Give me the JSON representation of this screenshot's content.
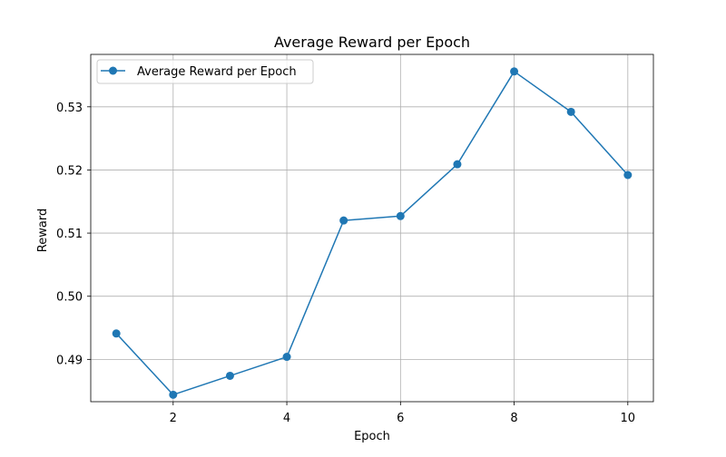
{
  "chart_data": {
    "type": "line",
    "title": "Average Reward per Epoch",
    "xlabel": "Epoch",
    "ylabel": "Reward",
    "xlim": [
      0.55,
      10.45
    ],
    "ylim": [
      0.4833,
      0.5383
    ],
    "xticks": [
      2,
      4,
      6,
      8,
      10
    ],
    "yticks": [
      0.49,
      0.5,
      0.51,
      0.52,
      0.53
    ],
    "ytick_labels": [
      "0.49",
      "0.50",
      "0.51",
      "0.52",
      "0.53"
    ],
    "grid": true,
    "legend_position": "top-left",
    "series": [
      {
        "name": "Average Reward per Epoch",
        "color": "#1f77b4",
        "marker": "circle",
        "x": [
          1,
          2,
          3,
          4,
          5,
          6,
          7,
          8,
          9,
          10
        ],
        "y": [
          0.4941,
          0.4844,
          0.4874,
          0.4904,
          0.512,
          0.5127,
          0.5209,
          0.5356,
          0.5292,
          0.5192
        ]
      }
    ]
  }
}
